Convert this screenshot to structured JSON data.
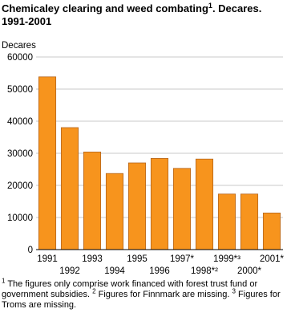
{
  "chart_data": {
    "type": "bar",
    "title": "Chemicaley clearing and weed combating",
    "title_note": "1",
    "title_suffix": ". Decares.",
    "subtitle": "1991-2001",
    "ylabel": "Decares",
    "categories": [
      "1991",
      "1992",
      "1993",
      "1994",
      "1995",
      "1996",
      "1997*",
      "1998*²",
      "1999*³",
      "2000*",
      "2001*"
    ],
    "values": [
      53800,
      38000,
      30400,
      23700,
      27000,
      28400,
      25300,
      28200,
      17300,
      17300,
      11400
    ],
    "color": "#f7941d",
    "edge_color": "#b5651d",
    "ylim": [
      0,
      60000
    ],
    "yticks": [
      0,
      10000,
      20000,
      30000,
      40000,
      50000,
      60000
    ],
    "grid": true,
    "footnotes": [
      {
        "mark": "1",
        "text": "The figures only comprise work financed with forest trust fund or government subsidies."
      },
      {
        "mark": "2",
        "text": "Figures for Finnmark are missing."
      },
      {
        "mark": "3",
        "text": "Figures for Troms are missing."
      }
    ]
  }
}
